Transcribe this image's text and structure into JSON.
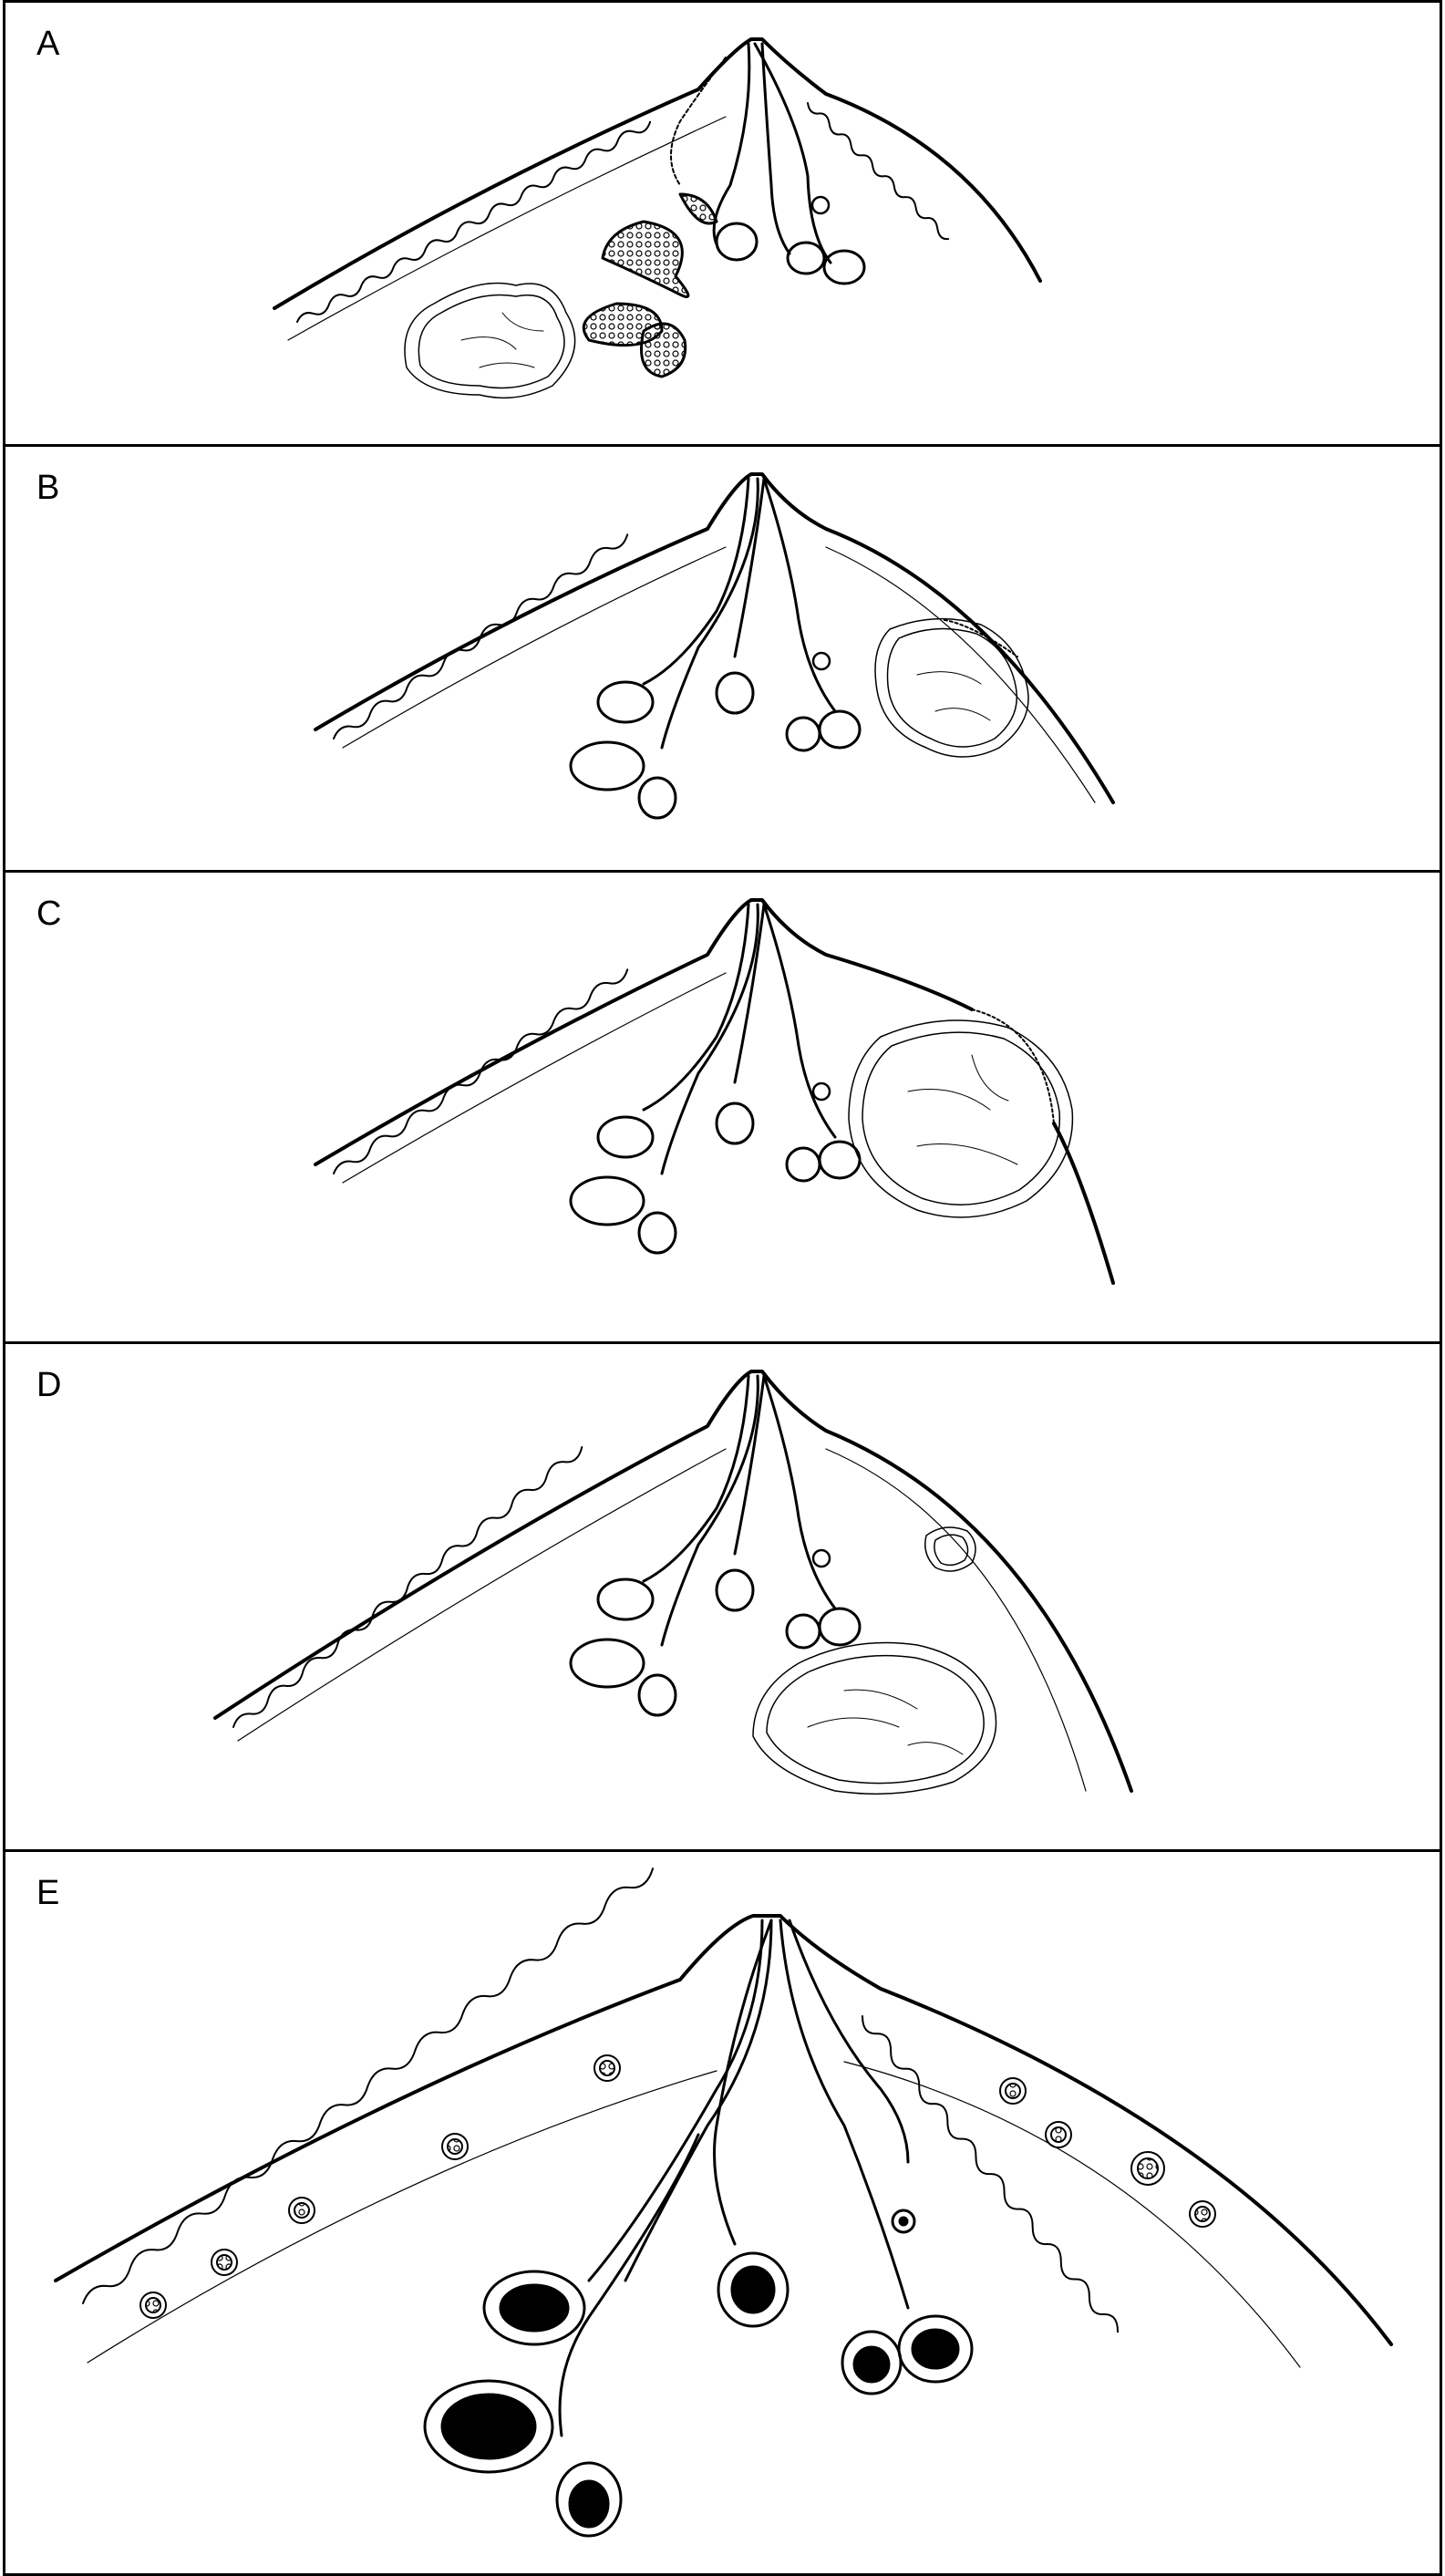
{
  "panels": [
    {
      "label": "A"
    },
    {
      "label": "B"
    },
    {
      "label": "C"
    },
    {
      "label": "D"
    },
    {
      "label": "E"
    }
  ],
  "colors": {
    "line": "#000000",
    "background": "#ffffff"
  }
}
